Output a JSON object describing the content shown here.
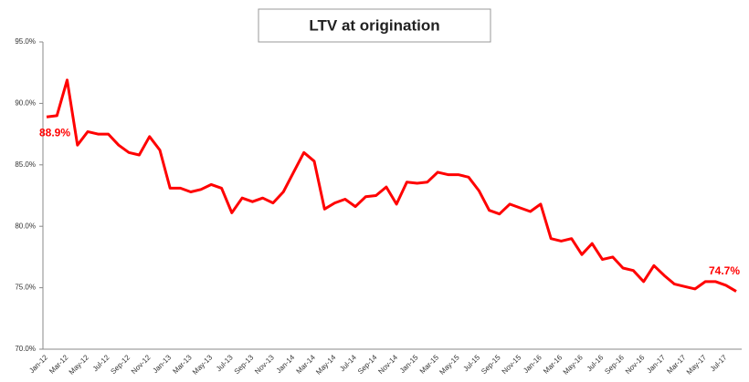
{
  "chart_data": {
    "type": "line",
    "title": "LTV at origination",
    "categories": [
      "Jan-12",
      null,
      "Mar-12",
      null,
      "May-12",
      null,
      "Jul-12",
      null,
      "Sep-12",
      null,
      "Nov-12",
      null,
      "Jan-13",
      null,
      "Mar-13",
      null,
      "May-13",
      null,
      "Jul-13",
      null,
      "Sep-13",
      null,
      "Nov-13",
      null,
      "Jan-14",
      null,
      "Mar-14",
      null,
      "May-14",
      null,
      "Jul-14",
      null,
      "Sep-14",
      null,
      "Nov-14",
      null,
      "Jan-15",
      null,
      "Mar-15",
      null,
      "May-15",
      null,
      "Jul-15",
      null,
      "Sep-15",
      null,
      "Nov-15",
      null,
      "Jan-16",
      null,
      "Mar-16",
      null,
      "May-16",
      null,
      "Jul-16",
      null,
      "Sep-16",
      null,
      "Nov-16",
      null,
      "Jan-17",
      null,
      "Mar-17",
      null,
      "May-17",
      null,
      "Jul-17",
      null
    ],
    "values": [
      88.9,
      89.0,
      91.9,
      86.6,
      87.7,
      87.5,
      87.5,
      86.6,
      86.0,
      85.8,
      87.3,
      86.2,
      83.1,
      83.1,
      82.8,
      83.0,
      83.4,
      83.1,
      81.1,
      82.3,
      82.0,
      82.3,
      81.9,
      82.8,
      84.4,
      86.0,
      85.3,
      81.4,
      81.9,
      82.2,
      81.6,
      82.4,
      82.5,
      83.2,
      81.8,
      83.6,
      83.5,
      83.6,
      84.4,
      84.2,
      84.2,
      84.0,
      82.9,
      81.3,
      81.0,
      81.8,
      81.5,
      81.2,
      81.8,
      79.0,
      78.8,
      79.0,
      77.7,
      78.6,
      77.3,
      77.5,
      76.6,
      76.4,
      75.5,
      76.8,
      76.0,
      75.3,
      75.1,
      74.9,
      75.5,
      75.5,
      75.2,
      74.7
    ],
    "value_labels": [
      "88.9%",
      null,
      null,
      null,
      null,
      null,
      null,
      null,
      null,
      null,
      null,
      null,
      null,
      null,
      null,
      null,
      null,
      null,
      null,
      null,
      null,
      null,
      null,
      null,
      null,
      null,
      null,
      null,
      null,
      null,
      null,
      null,
      null,
      null,
      null,
      null,
      null,
      null,
      null,
      null,
      null,
      null,
      null,
      null,
      null,
      null,
      null,
      null,
      null,
      null,
      null,
      null,
      null,
      null,
      null,
      null,
      null,
      null,
      null,
      null,
      null,
      null,
      null,
      null,
      null,
      null,
      null,
      "74.7%"
    ],
    "color": "#ff0000",
    "ylim": [
      70,
      95
    ],
    "yticks": [
      {
        "value": 70,
        "label": "70.0%"
      },
      {
        "value": 75,
        "label": "75.0%"
      },
      {
        "value": 80,
        "label": "80.0%"
      },
      {
        "value": 85,
        "label": "85.0%"
      },
      {
        "value": 90,
        "label": "90.0%"
      },
      {
        "value": 95,
        "label": "95.0%"
      }
    ],
    "grid": false
  }
}
